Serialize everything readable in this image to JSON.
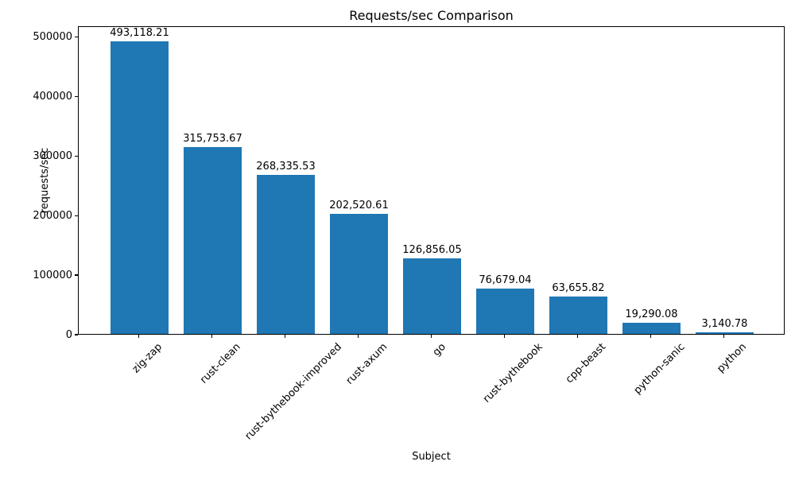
{
  "chart_data": {
    "type": "bar",
    "title": "Requests/sec Comparison",
    "xlabel": "Subject",
    "ylabel": "requests/sec",
    "categories": [
      "zig-zap",
      "rust-clean",
      "rust-bythebook-improved",
      "rust-axum",
      "go",
      "rust-bythebook",
      "cpp-beast",
      "python-sanic",
      "python"
    ],
    "values": [
      493118.21,
      315753.67,
      268335.53,
      202520.61,
      126856.05,
      76679.04,
      63655.82,
      19290.08,
      3140.78
    ],
    "value_labels": [
      "493,118.21",
      "315,753.67",
      "268,335.53",
      "202,520.61",
      "126,856.05",
      "76,679.04",
      "63,655.82",
      "19,290.08",
      "3,140.78"
    ],
    "ytick_values": [
      0,
      100000,
      200000,
      300000,
      400000,
      500000
    ],
    "ytick_labels": [
      "0",
      "100000",
      "200000",
      "300000",
      "400000",
      "500000"
    ],
    "ylim": [
      0,
      517774
    ],
    "grid": false,
    "legend": "none",
    "bar_color": "#1f77b4",
    "axis_color": "#000000",
    "text_color": "#000000"
  }
}
